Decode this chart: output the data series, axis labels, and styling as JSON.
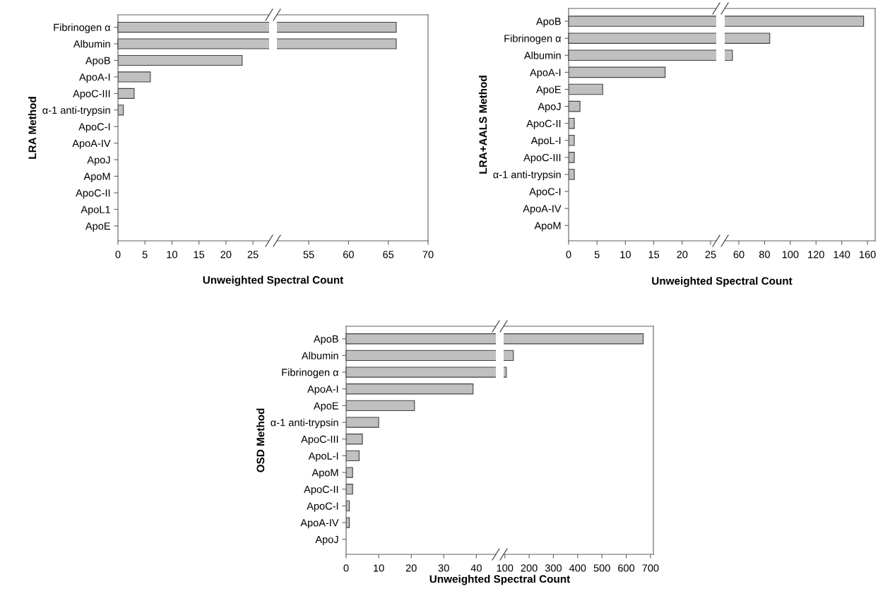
{
  "chart_data": [
    {
      "type": "bar",
      "orientation": "horizontal",
      "ylabel": "LRA Method",
      "xlabel": "Unweighted Spectral Count",
      "categories": [
        "Fibrinogen α",
        "Albumin",
        "ApoB",
        "ApoA-I",
        "ApoC-III",
        "α-1 anti-trypsin",
        "ApoC-I",
        "ApoA-IV",
        "ApoJ",
        "ApoM",
        "ApoC-II",
        "ApoL1",
        "ApoE"
      ],
      "values": [
        null,
        null,
        23,
        6,
        3,
        1,
        0,
        0,
        0,
        0,
        0,
        0,
        0
      ],
      "color": "#c0c0c0",
      "xlim": [
        0,
        28
      ],
      "xticks": [
        0,
        5,
        10,
        15,
        20,
        25
      ],
      "grid": false,
      "legend": false
    },
    {
      "type": "bar",
      "orientation": "horizontal",
      "categories": [
        null,
        null,
        null,
        null,
        null,
        null,
        null,
        null,
        null,
        null,
        null,
        null,
        null
      ],
      "values": [
        66,
        66,
        null,
        null,
        null,
        null,
        null,
        null,
        null,
        null,
        null,
        null,
        null
      ],
      "color": "#c0c0c0",
      "xlim": [
        51,
        70
      ],
      "xticks": [
        55,
        60,
        65,
        70
      ],
      "tick_labels": "x",
      "grid": false,
      "legend": false
    },
    {
      "type": "bar",
      "orientation": "horizontal",
      "ylabel": "LRA+AALS Method",
      "xlabel": "Unweighted Spectral Count",
      "categories": [
        "ApoB",
        "Fibrinogen α",
        "Albumin",
        "ApoA-I",
        "ApoE",
        "ApoJ",
        "ApoC-II",
        "ApoL-I",
        "ApoC-III",
        "α-1 anti-trypsin",
        "ApoC-I",
        "ApoA-IV",
        "ApoM"
      ],
      "values": [
        null,
        null,
        null,
        17,
        6,
        2,
        1,
        1,
        1,
        1,
        0,
        0,
        0
      ],
      "color": "#c0c0c0",
      "xlim": [
        0,
        26
      ],
      "xticks": [
        0,
        5,
        10,
        15,
        20,
        25
      ],
      "grid": false,
      "legend": false
    },
    {
      "type": "bar",
      "orientation": "horizontal",
      "categories": [
        null,
        null,
        null,
        null,
        null,
        null,
        null,
        null,
        null,
        null,
        null,
        null,
        null
      ],
      "values": [
        157,
        84,
        55,
        null,
        null,
        null,
        null,
        null,
        null,
        null,
        null,
        null,
        null
      ],
      "color": "#c0c0c0",
      "xlim": [
        49,
        166
      ],
      "xticks": [
        60,
        80,
        100,
        120,
        140,
        160
      ],
      "tick_labels": "x",
      "grid": false,
      "legend": false
    },
    {
      "type": "bar",
      "orientation": "horizontal",
      "ylabel": "OSD Method",
      "xlabel": "Unweighted Spectral Count",
      "categories": [
        "ApoB",
        "Albumin",
        "Fibrinogen α",
        "ApoA-I",
        "ApoE",
        "α-1 anti-trypsin",
        "ApoC-III",
        "ApoL-I",
        "ApoM",
        "ApoC-II",
        "ApoC-I",
        "ApoA-IV",
        "ApoJ"
      ],
      "values": [
        null,
        null,
        null,
        39,
        21,
        10,
        5,
        4,
        2,
        2,
        1,
        1,
        0
      ],
      "color": "#c0c0c0",
      "xlim": [
        0,
        46
      ],
      "xticks": [
        0,
        10,
        20,
        30,
        40
      ],
      "grid": false,
      "legend": false
    },
    {
      "type": "bar",
      "orientation": "horizontal",
      "categories": [
        null,
        null,
        null,
        null,
        null,
        null,
        null,
        null,
        null,
        null,
        null,
        null,
        null
      ],
      "values": [
        670,
        135,
        106,
        null,
        null,
        null,
        null,
        null,
        null,
        null,
        null,
        null,
        null
      ],
      "color": "#c0c0c0",
      "xlim": [
        95,
        712
      ],
      "xticks": [
        100,
        200,
        300,
        400,
        500,
        600,
        700
      ],
      "tick_labels": "x",
      "grid": false,
      "legend": false
    }
  ]
}
